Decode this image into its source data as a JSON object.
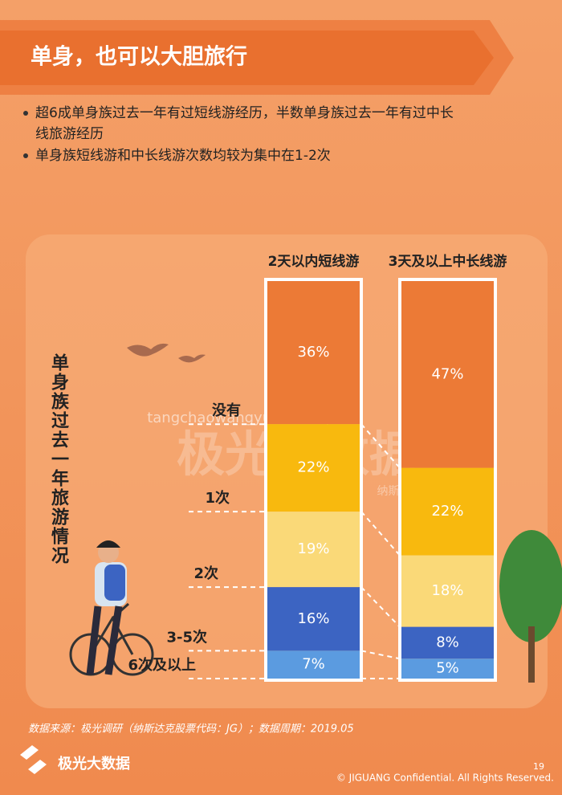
{
  "header": {
    "title": "单身，也可以大胆旅行"
  },
  "bullets": [
    "超6成单身族过去一年有过短线游经历，半数单身族过去一年有过中长线旅游经历",
    "单身族短线游和中长线游次数均较为集中在1-2次"
  ],
  "chart_data": {
    "type": "stacked_bar",
    "y_label": "单身族过去一年旅游情况",
    "categories": [
      "2天以内短线游",
      "3天及以上中长线游"
    ],
    "series": [
      {
        "name": "没有",
        "color": "#ec7a36",
        "values": [
          36,
          47
        ],
        "value_labels": [
          "36%",
          "47%"
        ]
      },
      {
        "name": "1次",
        "color": "#f8b90e",
        "values": [
          22,
          22
        ],
        "value_labels": [
          "22%",
          "22%"
        ]
      },
      {
        "name": "2次",
        "color": "#fad978",
        "values": [
          19,
          18
        ],
        "value_labels": [
          "19%",
          "18%"
        ]
      },
      {
        "name": "3-5次",
        "color": "#3c64c2",
        "values": [
          16,
          8
        ],
        "value_labels": [
          "16%",
          "8%"
        ]
      },
      {
        "name": "6次及以上",
        "color": "#5b9be0",
        "values": [
          7,
          5
        ],
        "value_labels": [
          "7%",
          "5%"
        ]
      }
    ]
  },
  "watermark": {
    "logo": "极光大数据",
    "code": "纳斯达克股票代码：JG",
    "url": "tangchaowangyueche.top"
  },
  "footer": {
    "source": "数据来源：极光调研（纳斯达克股票代码：JG）；数据周期：2019.05",
    "brand": "极光大数据",
    "page": "19",
    "copyright": "© JIGUANG Confidential. All Rights Reserved."
  }
}
